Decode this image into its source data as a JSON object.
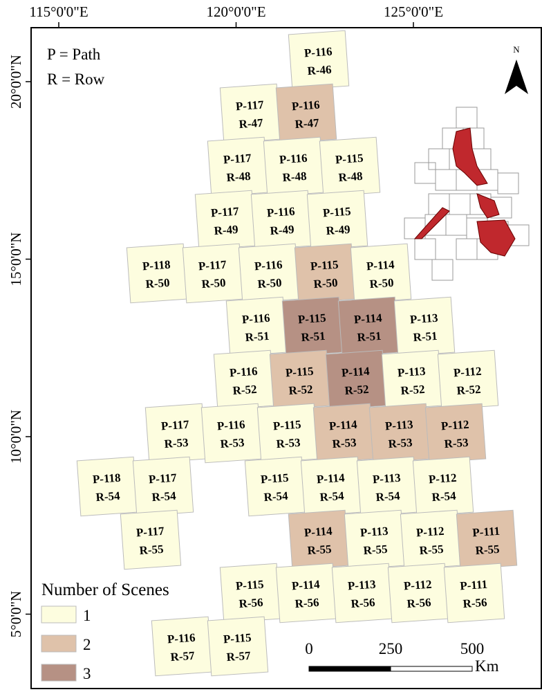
{
  "map": {
    "graticule": {
      "lon": [
        {
          "value": 115,
          "label": "115°0'0\"E"
        },
        {
          "value": 120,
          "label": "120°0'0\"E"
        },
        {
          "value": 125,
          "label": "125°0'0\"E"
        }
      ],
      "lat": [
        {
          "value": 20,
          "label": "20°0'0\"N"
        },
        {
          "value": 15,
          "label": "15°0'0\"N"
        },
        {
          "value": 10,
          "label": "10°0'0\"N"
        },
        {
          "value": 5,
          "label": "5°0'0\"N"
        }
      ]
    },
    "key": {
      "path": "P = Path",
      "row": "R = Row"
    },
    "north": "N",
    "legend": {
      "title": "Number of Scenes",
      "classes": [
        {
          "scenes": 1,
          "color": "#fdfddf"
        },
        {
          "scenes": 2,
          "color": "#dfc2aa"
        },
        {
          "scenes": 3,
          "color": "#b69184"
        }
      ]
    },
    "scale_bar": {
      "ticks": [
        0,
        250,
        500
      ],
      "unit": "Km"
    },
    "tiles": [
      {
        "path": "P-116",
        "row": "R-46",
        "scenes": 1
      },
      {
        "path": "P-117",
        "row": "R-47",
        "scenes": 1
      },
      {
        "path": "P-116",
        "row": "R-47",
        "scenes": 2
      },
      {
        "path": "P-117",
        "row": "R-48",
        "scenes": 1
      },
      {
        "path": "P-116",
        "row": "R-48",
        "scenes": 1
      },
      {
        "path": "P-115",
        "row": "R-48",
        "scenes": 1
      },
      {
        "path": "P-117",
        "row": "R-49",
        "scenes": 1
      },
      {
        "path": "P-116",
        "row": "R-49",
        "scenes": 1
      },
      {
        "path": "P-115",
        "row": "R-49",
        "scenes": 1
      },
      {
        "path": "P-118",
        "row": "R-50",
        "scenes": 1
      },
      {
        "path": "P-117",
        "row": "R-50",
        "scenes": 1
      },
      {
        "path": "P-116",
        "row": "R-50",
        "scenes": 1
      },
      {
        "path": "P-115",
        "row": "R-50",
        "scenes": 2
      },
      {
        "path": "P-114",
        "row": "R-50",
        "scenes": 1
      },
      {
        "path": "P-116",
        "row": "R-51",
        "scenes": 1
      },
      {
        "path": "P-115",
        "row": "R-51",
        "scenes": 3
      },
      {
        "path": "P-114",
        "row": "R-51",
        "scenes": 3
      },
      {
        "path": "P-113",
        "row": "R-51",
        "scenes": 1
      },
      {
        "path": "P-116",
        "row": "R-52",
        "scenes": 1
      },
      {
        "path": "P-115",
        "row": "R-52",
        "scenes": 2
      },
      {
        "path": "P-114",
        "row": "R-52",
        "scenes": 3
      },
      {
        "path": "P-113",
        "row": "R-52",
        "scenes": 1
      },
      {
        "path": "P-112",
        "row": "R-52",
        "scenes": 1
      },
      {
        "path": "P-117",
        "row": "R-53",
        "scenes": 1
      },
      {
        "path": "P-116",
        "row": "R-53",
        "scenes": 1
      },
      {
        "path": "P-115",
        "row": "R-53",
        "scenes": 1
      },
      {
        "path": "P-114",
        "row": "R-53",
        "scenes": 2
      },
      {
        "path": "P-113",
        "row": "R-53",
        "scenes": 2
      },
      {
        "path": "P-112",
        "row": "R-53",
        "scenes": 2
      },
      {
        "path": "P-118",
        "row": "R-54",
        "scenes": 1
      },
      {
        "path": "P-117",
        "row": "R-54",
        "scenes": 1
      },
      {
        "path": "P-115",
        "row": "R-54",
        "scenes": 1
      },
      {
        "path": "P-114",
        "row": "R-54",
        "scenes": 1
      },
      {
        "path": "P-113",
        "row": "R-54",
        "scenes": 1
      },
      {
        "path": "P-112",
        "row": "R-54",
        "scenes": 1
      },
      {
        "path": "P-117",
        "row": "R-55",
        "scenes": 1
      },
      {
        "path": "P-114",
        "row": "R-55",
        "scenes": 2
      },
      {
        "path": "P-113",
        "row": "R-55",
        "scenes": 1
      },
      {
        "path": "P-112",
        "row": "R-55",
        "scenes": 1
      },
      {
        "path": "P-111",
        "row": "R-55",
        "scenes": 2
      },
      {
        "path": "P-115",
        "row": "R-56",
        "scenes": 1
      },
      {
        "path": "P-114",
        "row": "R-56",
        "scenes": 1
      },
      {
        "path": "P-113",
        "row": "R-56",
        "scenes": 1
      },
      {
        "path": "P-112",
        "row": "R-56",
        "scenes": 1
      },
      {
        "path": "P-111",
        "row": "R-56",
        "scenes": 1
      },
      {
        "path": "P-116",
        "row": "R-57",
        "scenes": 1
      },
      {
        "path": "P-115",
        "row": "R-57",
        "scenes": 1
      }
    ]
  }
}
